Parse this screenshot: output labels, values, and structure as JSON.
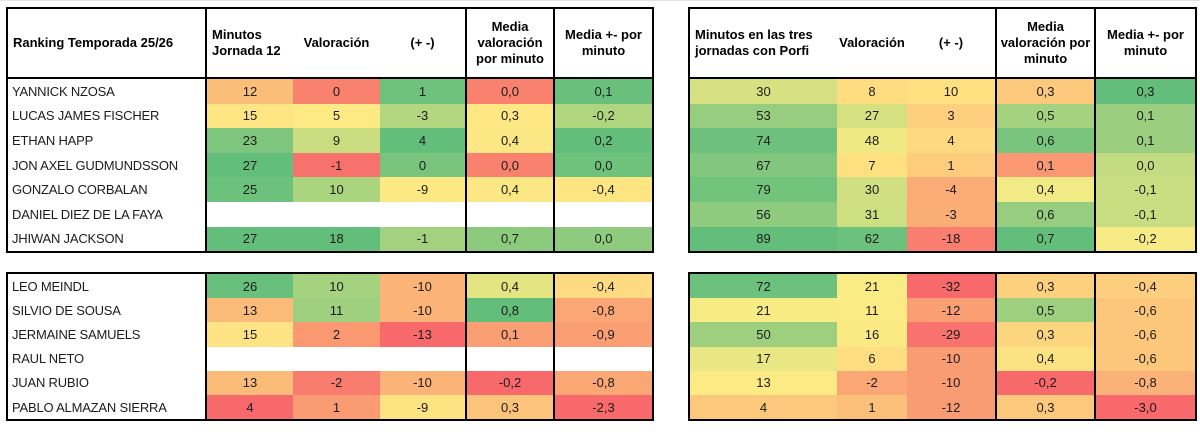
{
  "palette": {
    "border": "#000000",
    "scale_red": "#F8696B",
    "scale_yellow": "#FFEB84",
    "scale_green": "#63BE7B",
    "blank": "#FFFFFF"
  },
  "left": {
    "header": {
      "ranking": "Ranking Temporada 25/26",
      "minutos": "Minutos Jornada 12",
      "valoracion": "Valoración",
      "plus_minus": "(+ -)",
      "media_valoracion": "Media valoración por minuto",
      "media_pm": "Media +- por minuto"
    },
    "top_rows": [
      {
        "name": "YANNICK NZOSA",
        "cells": [
          [
            "12",
            "#FBBE78"
          ],
          [
            "0",
            "#F9826F"
          ],
          [
            "1",
            "#6FC27C"
          ],
          [
            "0,0",
            "#F9826F"
          ],
          [
            "0,1",
            "#68C07C"
          ]
        ]
      },
      {
        "name": "LUCAS JAMES FISCHER",
        "cells": [
          [
            "15",
            "#FDE583"
          ],
          [
            "5",
            "#FEEA84"
          ],
          [
            "-3",
            "#B3D680"
          ],
          [
            "0,3",
            "#FEE883"
          ],
          [
            "-0,2",
            "#AFD57F"
          ]
        ]
      },
      {
        "name": "ETHAN HAPP",
        "cells": [
          [
            "23",
            "#7EC67D"
          ],
          [
            "9",
            "#CADE81"
          ],
          [
            "4",
            "#63BE7B"
          ],
          [
            "0,4",
            "#FBE783"
          ],
          [
            "0,2",
            "#63BE7B"
          ]
        ]
      },
      {
        "name": "JON AXEL GUDMUNDSSON",
        "cells": [
          [
            "27",
            "#63BE7B"
          ],
          [
            "-1",
            "#F8726D"
          ],
          [
            "0",
            "#79C57D"
          ],
          [
            "0,0",
            "#F9826F"
          ],
          [
            "0,0",
            "#6FC27C"
          ]
        ]
      },
      {
        "name": "GONZALO CORBALAN",
        "cells": [
          [
            "25",
            "#6CC17C"
          ],
          [
            "10",
            "#ABD47F"
          ],
          [
            "-9",
            "#FDE983"
          ],
          [
            "0,4",
            "#FBE783"
          ],
          [
            "-0,4",
            "#FDE582"
          ]
        ]
      },
      {
        "name": "DANIEL DIEZ DE LA FAYA",
        "cells": [
          [
            "",
            ""
          ],
          [
            "",
            ""
          ],
          [
            "",
            ""
          ],
          [
            "",
            ""
          ],
          [
            "",
            ""
          ]
        ]
      },
      {
        "name": "JHIWAN JACKSON",
        "cells": [
          [
            "27",
            "#63BE7B"
          ],
          [
            "18",
            "#63BE7B"
          ],
          [
            "-1",
            "#A3D17F"
          ],
          [
            "0,7",
            "#8CCA7E"
          ],
          [
            "0,0",
            "#8FCB7E"
          ]
        ]
      }
    ],
    "bottom_rows": [
      {
        "name": "LEO MEINDL",
        "cells": [
          [
            "26",
            "#68C07C"
          ],
          [
            "10",
            "#A5D27F"
          ],
          [
            "-10",
            "#FBB377"
          ],
          [
            "0,4",
            "#E3E583"
          ],
          [
            "-0,4",
            "#FEDA80"
          ]
        ]
      },
      {
        "name": "SILVIO DE SOUSA",
        "cells": [
          [
            "13",
            "#FBBC79"
          ],
          [
            "11",
            "#9FD07F"
          ],
          [
            "-10",
            "#FBB377"
          ],
          [
            "0,8",
            "#63BE7B"
          ],
          [
            "-0,8",
            "#FAA675"
          ]
        ]
      },
      {
        "name": "JERMAINE SAMUELS",
        "cells": [
          [
            "15",
            "#FDE383"
          ],
          [
            "2",
            "#FA9872"
          ],
          [
            "-13",
            "#F8696B"
          ],
          [
            "0,1",
            "#FA9F73"
          ],
          [
            "-0,9",
            "#FA9F73"
          ]
        ]
      },
      {
        "name": "RAUL NETO",
        "cells": [
          [
            "",
            ""
          ],
          [
            "",
            ""
          ],
          [
            "",
            ""
          ],
          [
            "",
            ""
          ],
          [
            "",
            ""
          ]
        ]
      },
      {
        "name": "JUAN RUBIO",
        "cells": [
          [
            "13",
            "#FBBC79"
          ],
          [
            "-2",
            "#F87D6F"
          ],
          [
            "-10",
            "#FBB377"
          ],
          [
            "-0,2",
            "#F8696B"
          ],
          [
            "-0,8",
            "#FAA675"
          ]
        ]
      },
      {
        "name": "PABLO ALMAZAN SIERRA",
        "cells": [
          [
            "4",
            "#F8696B"
          ],
          [
            "1",
            "#FA9B73"
          ],
          [
            "-9",
            "#FDE382"
          ],
          [
            "0,3",
            "#FBC47A"
          ],
          [
            "-2,3",
            "#F8696B"
          ]
        ]
      }
    ]
  },
  "right": {
    "header": {
      "minutos": "Minutos en las tres jornadas con Porfi",
      "valoracion": "Valoración",
      "plus_minus": "(+ -)",
      "media_valoracion": "Media valoración por minuto",
      "media_pm": "Media +- por minuto"
    },
    "top_rows": [
      {
        "cells": [
          [
            "30",
            "#D7E182"
          ],
          [
            "8",
            "#FEDD80"
          ],
          [
            "10",
            "#FEE081"
          ],
          [
            "0,3",
            "#FCC87C"
          ],
          [
            "0,3",
            "#63BE7B"
          ]
        ]
      },
      {
        "cells": [
          [
            "53",
            "#96CD7E"
          ],
          [
            "27",
            "#D5E081"
          ],
          [
            "3",
            "#FDCF7E"
          ],
          [
            "0,5",
            "#A5D27F"
          ],
          [
            "0,1",
            "#9BCE7F"
          ]
        ]
      },
      {
        "cells": [
          [
            "74",
            "#6EC17C"
          ],
          [
            "48",
            "#EFE883"
          ],
          [
            "4",
            "#FED980"
          ],
          [
            "0,6",
            "#79C57D"
          ],
          [
            "0,1",
            "#9BCE7F"
          ]
        ]
      },
      {
        "cells": [
          [
            "67",
            "#82C77D"
          ],
          [
            "7",
            "#FEE081"
          ],
          [
            "1",
            "#FDCC7D"
          ],
          [
            "0,1",
            "#FA9874"
          ],
          [
            "0,0",
            "#C4DC81"
          ]
        ]
      },
      {
        "cells": [
          [
            "79",
            "#72C37C"
          ],
          [
            "30",
            "#CFDF81"
          ],
          [
            "-4",
            "#FBAB76"
          ],
          [
            "0,4",
            "#F2EA84"
          ],
          [
            "-0,1",
            "#C8DE81"
          ]
        ]
      },
      {
        "cells": [
          [
            "56",
            "#8FCB7E"
          ],
          [
            "31",
            "#CDDF81"
          ],
          [
            "-3",
            "#FBAD76"
          ],
          [
            "0,6",
            "#96CD7E"
          ],
          [
            "-0,1",
            "#C8DE81"
          ]
        ]
      },
      {
        "cells": [
          [
            "89",
            "#63BE7B"
          ],
          [
            "62",
            "#6CC17C"
          ],
          [
            "-18",
            "#F97E70"
          ],
          [
            "0,7",
            "#63BE7B"
          ],
          [
            "-0,2",
            "#F6EB84"
          ]
        ]
      }
    ],
    "bottom_rows": [
      {
        "cells": [
          [
            "72",
            "#6CC17C"
          ],
          [
            "21",
            "#F9EC84"
          ],
          [
            "-32",
            "#F8696B"
          ],
          [
            "0,3",
            "#FDD07E"
          ],
          [
            "-0,4",
            "#FDCE7D"
          ]
        ]
      },
      {
        "cells": [
          [
            "21",
            "#F6EB84"
          ],
          [
            "11",
            "#FCEA84"
          ],
          [
            "-12",
            "#FA9E73"
          ],
          [
            "0,5",
            "#9DCF7F"
          ],
          [
            "-0,6",
            "#FCC67B"
          ]
        ]
      },
      {
        "cells": [
          [
            "50",
            "#9DCF7F"
          ],
          [
            "16",
            "#FBE983"
          ],
          [
            "-29",
            "#F9726D"
          ],
          [
            "0,3",
            "#FCD57F"
          ],
          [
            "-0,6",
            "#FCC67B"
          ]
        ]
      },
      {
        "cells": [
          [
            "17",
            "#E8E783"
          ],
          [
            "6",
            "#FEDE81"
          ],
          [
            "-10",
            "#FA9C73"
          ],
          [
            "0,4",
            "#FBE282"
          ],
          [
            "-0,6",
            "#FCC67B"
          ]
        ]
      },
      {
        "cells": [
          [
            "13",
            "#FCEA84"
          ],
          [
            "-2",
            "#FBA775"
          ],
          [
            "-10",
            "#FA9C73"
          ],
          [
            "-0,2",
            "#F8696B"
          ],
          [
            "-0,8",
            "#FBB278"
          ]
        ]
      },
      {
        "cells": [
          [
            "4",
            "#FCC97C"
          ],
          [
            "1",
            "#FCC07A"
          ],
          [
            "-12",
            "#FA9C73"
          ],
          [
            "0,3",
            "#FCC97C"
          ],
          [
            "-3,0",
            "#F8696B"
          ]
        ]
      }
    ]
  }
}
